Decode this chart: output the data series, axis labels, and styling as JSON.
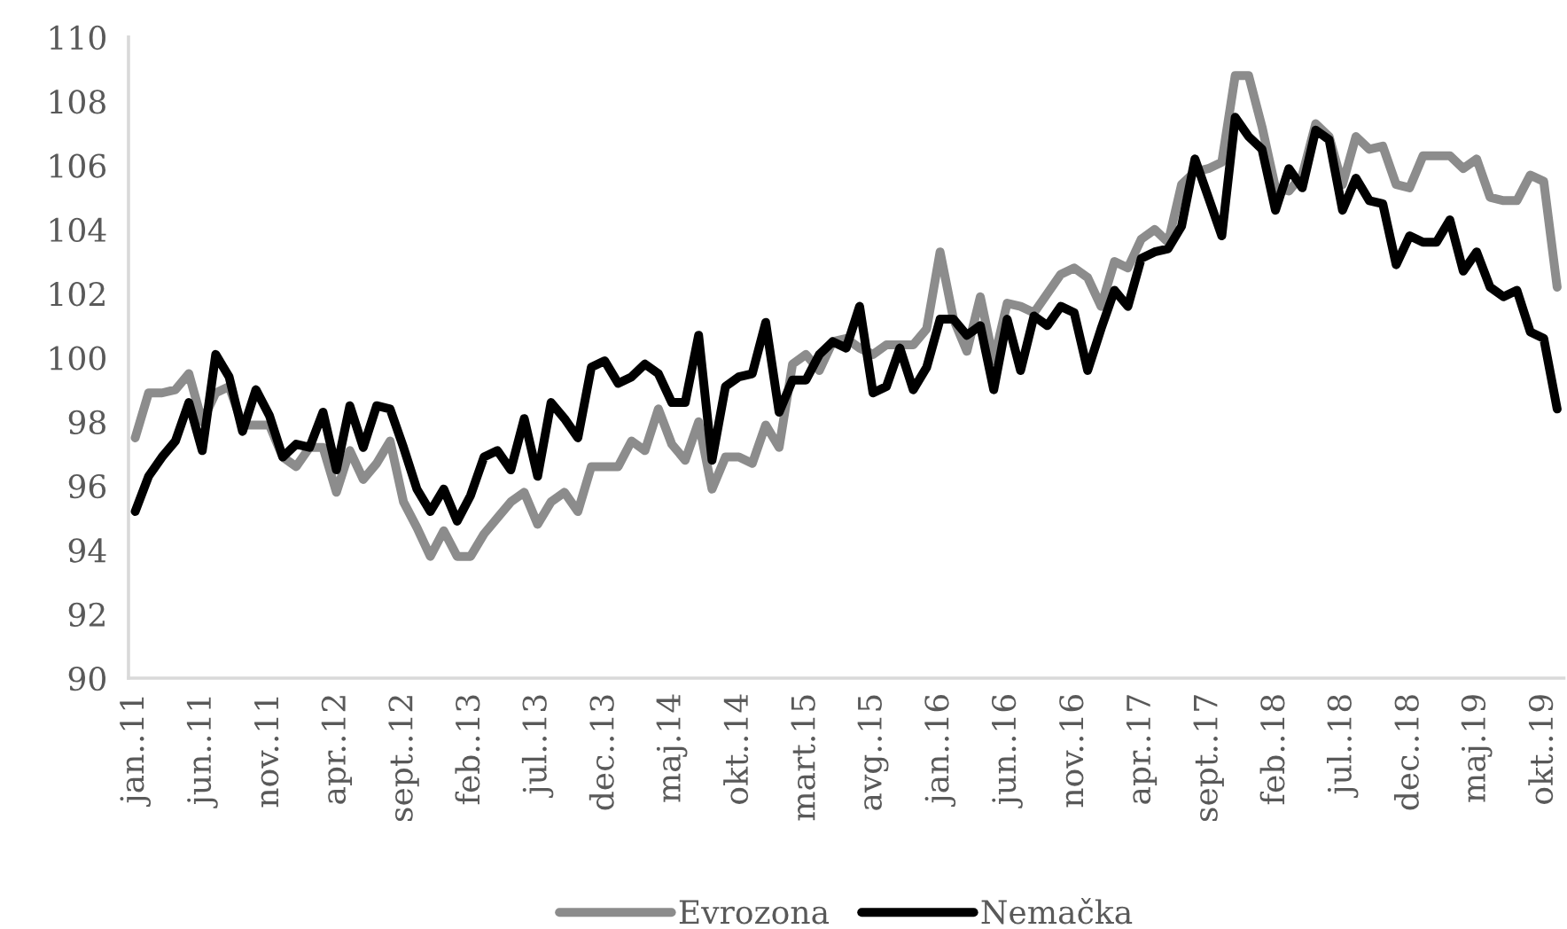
{
  "chart_data": {
    "type": "line",
    "categories": [
      "jan..11",
      null,
      null,
      null,
      null,
      "jun..11",
      null,
      null,
      null,
      null,
      "nov..11",
      null,
      null,
      null,
      null,
      "apr..12",
      null,
      null,
      null,
      null,
      "sept..12",
      null,
      null,
      null,
      null,
      "feb..13",
      null,
      null,
      null,
      null,
      "jul..13",
      null,
      null,
      null,
      null,
      "dec..13",
      null,
      null,
      null,
      null,
      "maj.14",
      null,
      null,
      null,
      null,
      "okt..14",
      null,
      null,
      null,
      null,
      "mart.15",
      null,
      null,
      null,
      null,
      "avg..15",
      null,
      null,
      null,
      null,
      "jan..16",
      null,
      null,
      null,
      null,
      "jun..16",
      null,
      null,
      null,
      null,
      "nov..16",
      null,
      null,
      null,
      null,
      "apr..17",
      null,
      null,
      null,
      null,
      "sept..17",
      null,
      null,
      null,
      null,
      "feb..18",
      null,
      null,
      null,
      null,
      "jul..18",
      null,
      null,
      null,
      null,
      "dec..18",
      null,
      null,
      null,
      null,
      "maj.19",
      null,
      null,
      null,
      null,
      "okt..19",
      null
    ],
    "series": [
      {
        "name": "Evrozona",
        "color": "#8c8c8c",
        "values": [
          97.5,
          98.9,
          98.9,
          99.0,
          99.5,
          98.0,
          98.9,
          99.1,
          97.9,
          97.9,
          97.9,
          96.9,
          96.6,
          97.2,
          97.2,
          95.8,
          97.1,
          96.2,
          96.7,
          97.4,
          95.5,
          94.7,
          93.8,
          94.6,
          93.8,
          93.8,
          94.5,
          95.0,
          95.5,
          95.8,
          94.8,
          95.5,
          95.8,
          95.2,
          96.6,
          96.6,
          96.6,
          97.4,
          97.1,
          98.4,
          97.3,
          96.8,
          98.0,
          95.9,
          96.9,
          96.9,
          96.7,
          97.9,
          97.2,
          99.8,
          100.1,
          99.6,
          100.5,
          100.6,
          100.3,
          100.1,
          100.4,
          100.4,
          100.4,
          100.9,
          103.3,
          101.2,
          100.2,
          101.9,
          99.9,
          101.7,
          101.6,
          101.4,
          102.0,
          102.6,
          102.8,
          102.5,
          101.6,
          103.0,
          102.8,
          103.7,
          104.0,
          103.6,
          105.4,
          105.8,
          105.9,
          106.1,
          108.8,
          108.8,
          107.2,
          105.3,
          105.2,
          105.7,
          107.3,
          106.9,
          105.4,
          106.9,
          106.5,
          106.6,
          105.4,
          105.3,
          106.3,
          106.3,
          106.3,
          105.9,
          106.2,
          105.0,
          104.9,
          104.9,
          105.7,
          105.5,
          102.2
        ]
      },
      {
        "name": "Nemačka",
        "color": "#000000",
        "values": [
          95.2,
          96.3,
          96.9,
          97.4,
          98.6,
          97.1,
          100.1,
          99.4,
          97.7,
          99.0,
          98.2,
          96.9,
          97.3,
          97.2,
          98.3,
          96.5,
          98.5,
          97.2,
          98.5,
          98.4,
          97.2,
          95.9,
          95.2,
          95.9,
          94.9,
          95.7,
          96.9,
          97.1,
          96.5,
          98.1,
          96.3,
          98.6,
          98.1,
          97.5,
          99.7,
          99.9,
          99.2,
          99.4,
          99.8,
          99.5,
          98.6,
          98.6,
          100.7,
          96.8,
          99.1,
          99.4,
          99.5,
          101.1,
          98.3,
          99.3,
          99.3,
          100.1,
          100.5,
          100.3,
          101.6,
          98.9,
          99.1,
          100.3,
          99.0,
          99.7,
          101.2,
          101.2,
          100.7,
          101.0,
          99.0,
          101.2,
          99.6,
          101.3,
          101.0,
          101.6,
          101.4,
          99.6,
          100.9,
          102.1,
          101.6,
          103.1,
          103.3,
          103.4,
          104.1,
          106.2,
          105.0,
          103.8,
          107.5,
          106.9,
          106.5,
          104.6,
          105.9,
          105.3,
          107.1,
          106.8,
          104.6,
          105.6,
          104.9,
          104.8,
          102.9,
          103.8,
          103.6,
          103.6,
          104.3,
          102.7,
          103.3,
          102.2,
          101.9,
          102.1,
          100.8,
          100.6,
          98.4
        ]
      }
    ],
    "ylim": [
      90,
      110
    ],
    "yticks": [
      90,
      92,
      94,
      96,
      98,
      100,
      102,
      104,
      106,
      108,
      110
    ],
    "grid": false,
    "legend": "bottom",
    "marker": "none",
    "line_style": "solid"
  }
}
